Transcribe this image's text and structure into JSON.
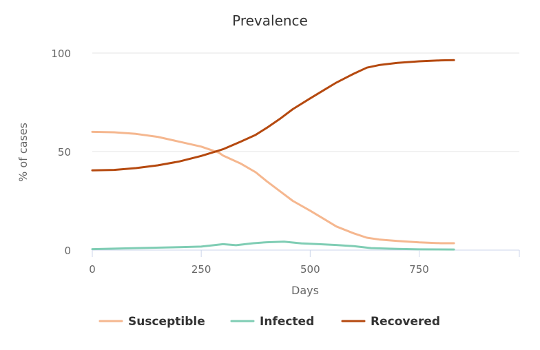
{
  "chart_data": {
    "type": "line",
    "title": "Prevalence",
    "xlabel": "Days",
    "ylabel": "% of cases",
    "xlim": [
      0,
      980
    ],
    "ylim": [
      0,
      100
    ],
    "x_ticks": [
      0,
      250,
      500,
      750
    ],
    "y_ticks": [
      0,
      50,
      100
    ],
    "x_tick_labels": [
      "0",
      "250",
      "500",
      "750"
    ],
    "y_tick_labels": [
      "0",
      "50",
      "100"
    ],
    "grid": "horizontal",
    "legend_position": "bottom",
    "series": [
      {
        "name": "Susceptible",
        "color": "#f5b78f",
        "points": [
          [
            0,
            60
          ],
          [
            50,
            59.8
          ],
          [
            100,
            59
          ],
          [
            150,
            57.5
          ],
          [
            200,
            55
          ],
          [
            250,
            52.5
          ],
          [
            290,
            49.5
          ],
          [
            300,
            48
          ],
          [
            340,
            44
          ],
          [
            375,
            39.5
          ],
          [
            400,
            35
          ],
          [
            430,
            30
          ],
          [
            460,
            25
          ],
          [
            500,
            20
          ],
          [
            530,
            16
          ],
          [
            560,
            12
          ],
          [
            600,
            8.5
          ],
          [
            630,
            6.3
          ],
          [
            660,
            5.3
          ],
          [
            700,
            4.6
          ],
          [
            750,
            3.9
          ],
          [
            800,
            3.5
          ],
          [
            830,
            3.5
          ]
        ]
      },
      {
        "name": "Infected",
        "color": "#7fcdb4",
        "points": [
          [
            0,
            0.5
          ],
          [
            100,
            1
          ],
          [
            200,
            1.5
          ],
          [
            250,
            1.8
          ],
          [
            300,
            3
          ],
          [
            330,
            2.5
          ],
          [
            370,
            3.5
          ],
          [
            400,
            4
          ],
          [
            440,
            4.3
          ],
          [
            480,
            3.4
          ],
          [
            520,
            3
          ],
          [
            560,
            2.6
          ],
          [
            600,
            2
          ],
          [
            640,
            1
          ],
          [
            700,
            0.6
          ],
          [
            750,
            0.4
          ],
          [
            830,
            0.3
          ]
        ]
      },
      {
        "name": "Recovered",
        "color": "#b5490f",
        "points": [
          [
            0,
            40.5
          ],
          [
            50,
            40.7
          ],
          [
            100,
            41.6
          ],
          [
            150,
            43
          ],
          [
            200,
            45
          ],
          [
            250,
            47.8
          ],
          [
            290,
            50.5
          ],
          [
            300,
            51.2
          ],
          [
            340,
            55
          ],
          [
            375,
            58.5
          ],
          [
            400,
            62
          ],
          [
            430,
            66.5
          ],
          [
            460,
            71.5
          ],
          [
            500,
            77
          ],
          [
            530,
            81
          ],
          [
            560,
            85
          ],
          [
            600,
            89.5
          ],
          [
            630,
            92.6
          ],
          [
            660,
            94
          ],
          [
            700,
            95
          ],
          [
            750,
            95.8
          ],
          [
            800,
            96.3
          ],
          [
            830,
            96.4
          ]
        ]
      }
    ]
  }
}
